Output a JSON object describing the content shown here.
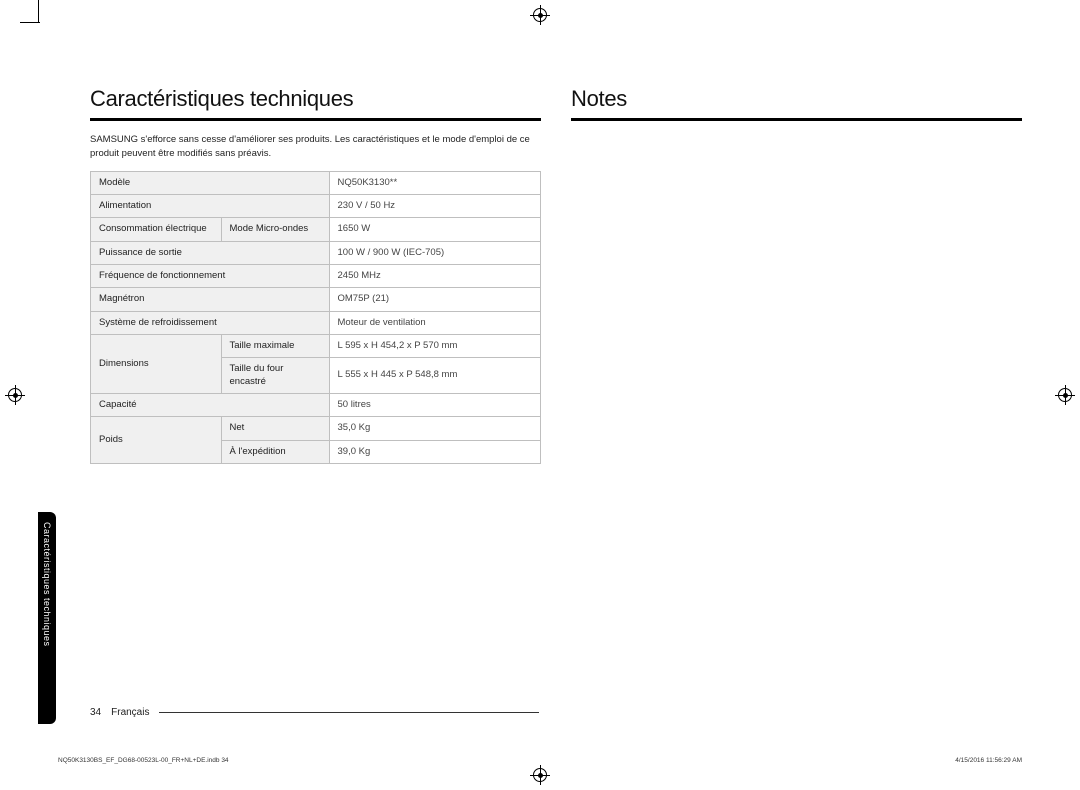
{
  "left": {
    "heading": "Caractéristiques techniques",
    "intro": "SAMSUNG s'efforce sans cesse d'améliorer ses produits. Les caractéristiques et le mode d'emploi de ce produit peuvent être modifiés sans préavis.",
    "specs": {
      "rows": [
        {
          "label": "Modèle",
          "value": "NQ50K3130**"
        },
        {
          "label": "Alimentation",
          "value": "230 V / 50 Hz"
        },
        {
          "label": "Consommation électrique",
          "sublabel": "Mode Micro-ondes",
          "value": "1650 W"
        },
        {
          "label": "Puissance de sortie",
          "value": "100 W / 900 W (IEC-705)"
        },
        {
          "label": "Fréquence de fonctionnement",
          "value": "2450 MHz"
        },
        {
          "label": "Magnétron",
          "value": "OM75P (21)"
        },
        {
          "label": "Système de refroidissement",
          "value": "Moteur de ventilation"
        },
        {
          "label": "Dimensions",
          "sub": [
            {
              "sublabel": "Taille maximale",
              "value": "L 595 x H 454,2 x P 570 mm"
            },
            {
              "sublabel": "Taille du four encastré",
              "value": "L 555 x H 445 x P 548,8 mm"
            }
          ]
        },
        {
          "label": "Capacité",
          "value": "50 litres"
        },
        {
          "label": "Poids",
          "sub": [
            {
              "sublabel": "Net",
              "value": "35,0 Kg"
            },
            {
              "sublabel": "À l'expédition",
              "value": "39,0 Kg"
            }
          ]
        }
      ]
    }
  },
  "right": {
    "heading": "Notes"
  },
  "sideTab": "Caractéristiques techniques",
  "footer": {
    "pageNumber": "34",
    "language": "Français"
  },
  "imprint": {
    "left": "NQ50K3130BS_EF_DG68-00523L-00_FR+NL+DE.indb   34",
    "right": "4/15/2016   11:56:29 AM"
  },
  "style": {
    "heading_fontsize": 22,
    "body_fontsize": 9.5,
    "border_color": "#bfbfbf",
    "label_bg": "#f0f0f0",
    "value_bg": "#ffffff",
    "page_bg": "#ffffff",
    "tab_bg": "#000000",
    "tab_color": "#ffffff"
  }
}
